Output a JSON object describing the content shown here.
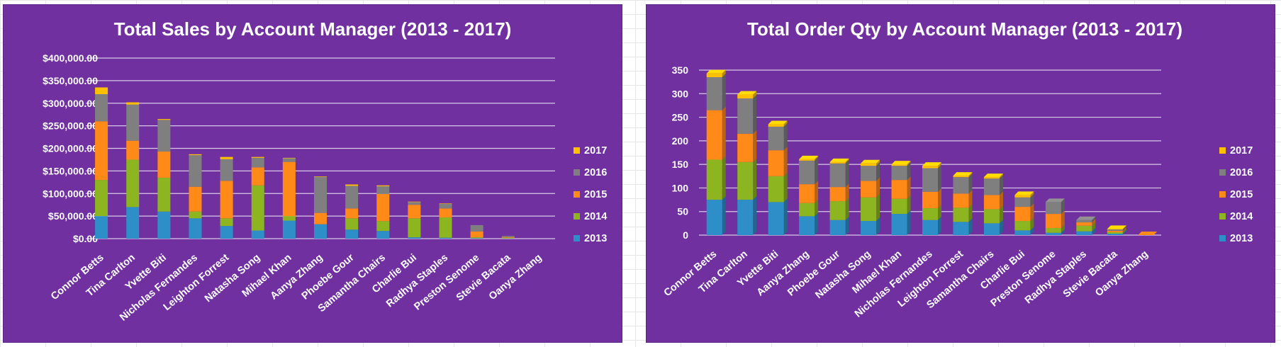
{
  "colors": {
    "2013": "#2e8fc8",
    "2014": "#8db520",
    "2015": "#ff8a17",
    "2016": "#7f7f7f",
    "2017": "#ffc000",
    "background": "#7030a0",
    "text": "#ffffff"
  },
  "chart_data": [
    {
      "type": "bar",
      "stacked": true,
      "title": "Total Sales by Account Manager (2013 - 2017)",
      "categories": [
        "Connor Betts",
        "Tina Carlton",
        "Yvette Biti",
        "Nicholas Fernandes",
        "Leighton Forrest",
        "Natasha Song",
        "Mihael Khan",
        "Aanya Zhang",
        "Phoebe Gour",
        "Samantha Chairs",
        "Charlie Bui",
        "Radhya Staples",
        "Preston Senome",
        "Stevie Bacata",
        "Oanya Zhang"
      ],
      "ylim": [
        0,
        400000
      ],
      "yticks": [
        0,
        50000,
        100000,
        150000,
        200000,
        250000,
        300000,
        350000,
        400000
      ],
      "ytick_labels": [
        "$0.00",
        "$50,000.00",
        "$100,000.00",
        "$150,000.00",
        "$200,000.00",
        "$250,000.00",
        "$300,000.00",
        "$350,000.00",
        "$400,000.00"
      ],
      "legend_position": "right",
      "series": [
        {
          "name": "2013",
          "values": [
            50000,
            70000,
            60000,
            45000,
            28000,
            18000,
            40000,
            32000,
            20000,
            17000,
            3000,
            2000,
            1000,
            500,
            0
          ]
        },
        {
          "name": "2014",
          "values": [
            80000,
            105000,
            75000,
            15000,
            17000,
            100000,
            10000,
            0,
            25000,
            22000,
            42000,
            45000,
            2000,
            1500,
            0
          ]
        },
        {
          "name": "2015",
          "values": [
            130000,
            42000,
            58000,
            55000,
            83000,
            40000,
            120000,
            25000,
            22000,
            60000,
            30000,
            20000,
            13000,
            1500,
            0
          ]
        },
        {
          "name": "2016",
          "values": [
            60000,
            80000,
            70000,
            70000,
            48000,
            21000,
            8000,
            80000,
            50000,
            17000,
            6000,
            10000,
            14000,
            2500,
            0
          ]
        },
        {
          "name": "2017",
          "values": [
            15000,
            5000,
            2000,
            2000,
            5000,
            2000,
            1000,
            1000,
            3000,
            2000,
            1000,
            1000,
            0,
            0,
            0
          ]
        }
      ]
    },
    {
      "type": "bar",
      "stacked": true,
      "style": "3d",
      "title": "Total Order Qty by Account Manager (2013 - 2017)",
      "categories": [
        "Connor Betts",
        "Tina Carlton",
        "Yvette Biti",
        "Aanya Zhang",
        "Phoebe Gour",
        "Natasha Song",
        "Mihael Khan",
        "Nicholas Fernandes",
        "Leighton Forrest",
        "Samantha Chairs",
        "Charlie Bui",
        "Preston Senome",
        "Radhya Staples",
        "Stevie Bacata",
        "Oanya Zhang"
      ],
      "ylim": [
        0,
        350
      ],
      "yticks": [
        0,
        50,
        100,
        150,
        200,
        250,
        300,
        350
      ],
      "ytick_labels": [
        "0",
        "50",
        "100",
        "150",
        "200",
        "250",
        "300",
        "350"
      ],
      "legend_position": "right",
      "series": [
        {
          "name": "2013",
          "values": [
            75,
            75,
            70,
            40,
            32,
            30,
            45,
            32,
            28,
            25,
            10,
            5,
            8,
            3,
            0
          ]
        },
        {
          "name": "2014",
          "values": [
            85,
            80,
            55,
            28,
            40,
            50,
            32,
            25,
            30,
            30,
            20,
            10,
            12,
            3,
            0
          ]
        },
        {
          "name": "2015",
          "values": [
            105,
            60,
            55,
            40,
            30,
            35,
            40,
            35,
            30,
            30,
            30,
            30,
            7,
            3,
            0
          ]
        },
        {
          "name": "2016",
          "values": [
            70,
            75,
            50,
            50,
            50,
            32,
            30,
            50,
            35,
            35,
            20,
            25,
            5,
            3,
            0
          ]
        },
        {
          "name": "2017",
          "values": [
            8,
            8,
            5,
            3,
            3,
            5,
            3,
            5,
            3,
            3,
            5,
            0,
            0,
            1,
            0
          ]
        }
      ]
    }
  ]
}
